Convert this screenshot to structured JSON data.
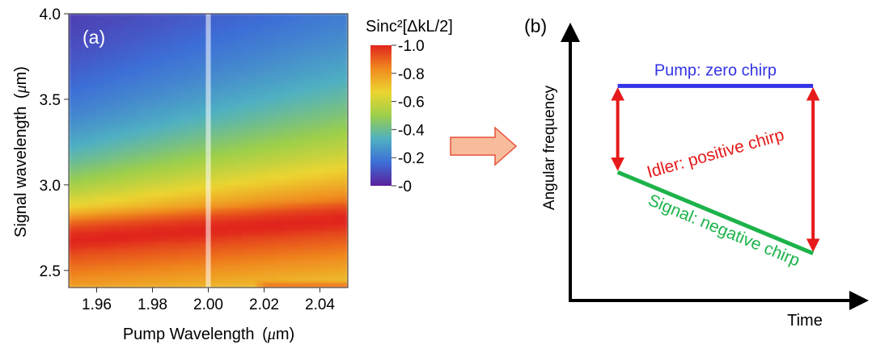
{
  "chart_data": [
    {
      "type": "heatmap",
      "panel_label": "(a)",
      "title": "",
      "xlabel": {
        "text": "Pump Wavelength",
        "unit_open": "(",
        "unit_mu": "μ",
        "unit_rest": "m)"
      },
      "ylabel": {
        "text": "Signal wavelength",
        "unit_open": "(",
        "unit_mu": "μ",
        "unit_rest": "m)"
      },
      "xlim": [
        1.95,
        2.05
      ],
      "ylim": [
        2.4,
        4.0
      ],
      "x_ticks": [
        {
          "value": 1.96,
          "label": "1.96"
        },
        {
          "value": 1.98,
          "label": "1.98"
        },
        {
          "value": 2.0,
          "label": "2.00"
        },
        {
          "value": 2.02,
          "label": "2.02"
        },
        {
          "value": 2.04,
          "label": "2.04"
        }
      ],
      "y_ticks": [
        {
          "value": 2.5,
          "label": "2.5"
        },
        {
          "value": 3.0,
          "label": "3.0"
        },
        {
          "value": 3.5,
          "label": "3.5"
        },
        {
          "value": 4.0,
          "label": "4.0"
        }
      ],
      "highlight_x": 2.0,
      "z_min": 0,
      "z_max": 1,
      "colorbar": {
        "title": "Sinc²[ΔkL/2]",
        "ticks": [
          {
            "value": 1.0,
            "label": "1.0"
          },
          {
            "value": 0.8,
            "label": "0.8"
          },
          {
            "value": 0.6,
            "label": "0.6"
          },
          {
            "value": 0.4,
            "label": "0.4"
          },
          {
            "value": 0.2,
            "label": "0.2"
          },
          {
            "value": 0.0,
            "label": "0"
          }
        ],
        "colors": [
          "#5a1f9c",
          "#3d6ed6",
          "#4fb0c2",
          "#9ccf4a",
          "#ecd531",
          "#f08a1f",
          "#e0251e"
        ]
      }
    },
    {
      "type": "line",
      "panel_label": "(b)",
      "title": "",
      "xlabel": "Time",
      "ylabel": "Angular frequency",
      "xlim": [
        0,
        1
      ],
      "ylim": [
        0,
        1
      ],
      "series": [
        {
          "name": "Pump: zero chirp",
          "color": "#3333e6",
          "x": [
            0.17,
            0.87
          ],
          "y": [
            0.82,
            0.82
          ]
        },
        {
          "name": "Signal: negative chirp",
          "color": "#1cb34a",
          "x": [
            0.17,
            0.87
          ],
          "y": [
            0.49,
            0.18
          ]
        }
      ],
      "annotations": [
        {
          "label": "Idler: positive chirp",
          "color": "#e61a1a"
        }
      ],
      "arrows": [
        {
          "color": "#e61a1a",
          "x": 0.17,
          "y": [
            0.49,
            0.82
          ]
        },
        {
          "color": "#e61a1a",
          "x": 0.87,
          "y": [
            0.18,
            0.82
          ]
        }
      ]
    }
  ],
  "transition_arrow": {
    "fill": "#f8bc9c",
    "stroke": "#e5523a"
  }
}
